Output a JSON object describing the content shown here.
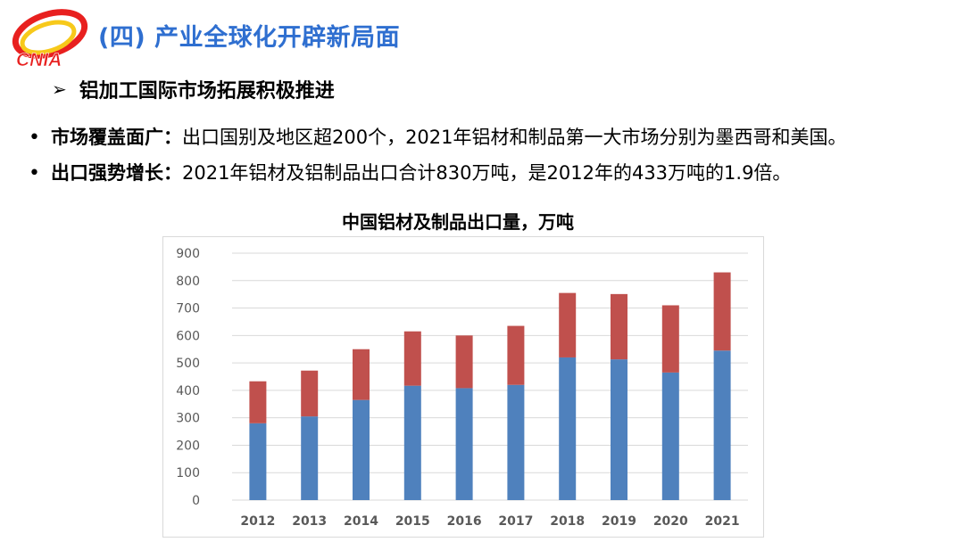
{
  "header": {
    "logo_text": "CNIA",
    "title": "(四) 产业全球化开辟新局面"
  },
  "section": {
    "arrow_glyph": "➢",
    "subtitle": "铝加工国际市场拓展积极推进"
  },
  "bullets": [
    {
      "label": "市场覆盖面广：",
      "text": "出口国别及地区超200个，2021年铝材和制品第一大市场分别为墨西哥和美国。"
    },
    {
      "label": "出口强势增长：",
      "text": "2021年铝材及铝制品出口合计830万吨，是2012年的433万吨的1.9倍。"
    }
  ],
  "colors": {
    "title_blue": "#2f6fd0",
    "series_bottom": "#4f81bd",
    "series_top": "#c0504d",
    "logo_red": "#e8201f",
    "logo_yellow": "#f7c91b"
  },
  "chart_data": {
    "type": "bar",
    "stacked": true,
    "title": "中国铝材及制品出口量，万吨",
    "categories": [
      "2012",
      "2013",
      "2014",
      "2015",
      "2016",
      "2017",
      "2018",
      "2019",
      "2020",
      "2021"
    ],
    "series": [
      {
        "values": [
          280,
          305,
          365,
          417,
          408,
          420,
          520,
          513,
          465,
          545
        ]
      },
      {
        "values": [
          153,
          167,
          185,
          198,
          192,
          215,
          235,
          238,
          245,
          285
        ]
      }
    ],
    "ylim": [
      0,
      900
    ],
    "yticks": [
      "0",
      "100",
      "200",
      "300",
      "400",
      "500",
      "600",
      "700",
      "800",
      "900"
    ],
    "grid": true,
    "legend": "none"
  }
}
